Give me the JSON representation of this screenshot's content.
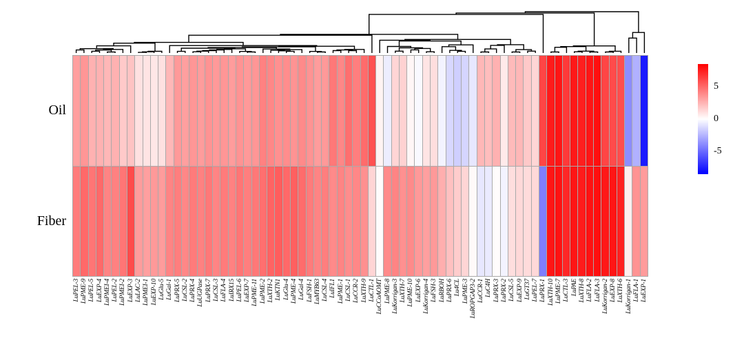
{
  "chart_data": {
    "type": "heatmap",
    "title": "",
    "rows": [
      "Oil",
      "Fiber"
    ],
    "columns": [
      "LuPEL-3",
      "LuPME-9",
      "LuPEL-5",
      "LuEXP-4",
      "LuPMEI-4",
      "LuPEL-2",
      "LuPMEI-2",
      "LuEXP-3",
      "LuLAC-2",
      "LuPMEI-1",
      "LuEXP-10",
      "LuGlu-5",
      "LuGal-1",
      "LuPRX-5",
      "LuCSL-2",
      "LuPRX-4",
      "LuUGPase",
      "LuPRX-7",
      "LuCSL-3",
      "LuFLA-4",
      "LuIRX15",
      "LuPEL-6",
      "LuEXP-7",
      "LuPME-11",
      "LuPME-2",
      "LuXTH-2",
      "LuKTN1",
      "LuGlu-4",
      "LuPME-4",
      "LuGal-4",
      "LuFSH-1",
      "LuMYB63",
      "LuCSL-4",
      "LuIFL1",
      "LuPME-1",
      "LuCSL-1",
      "LuCCR-2",
      "LuXTH-9",
      "LuCTL-1",
      "LuCCoAOMT",
      "LuPME-8",
      "LuKorrigan-3",
      "LuXTH-7",
      "LuPME-10",
      "LuEXP-6",
      "LuKorrigan-4",
      "LuFSH-3",
      "LuRBOH",
      "LuPRX-6",
      "Lu4CL",
      "LuPME-3",
      "LuROPGAP3-2",
      "LuCCR-1",
      "LuC4H",
      "LuPRX-3",
      "LuPRX-2",
      "LuCSL-5",
      "LuEXP-9",
      "LuGT37",
      "LuPEL-7",
      "LuPRX-1",
      "LuXTH-10",
      "LuPME-7",
      "LuCTL-3",
      "LuPAE",
      "LuXTH-8",
      "LuFLA-2",
      "LuFLA-3",
      "LuKorrigan-2",
      "LuEXP-8",
      "LuXTH-6",
      "LuKorrigan-1",
      "LuFLA-1",
      "LuEXP-1"
    ],
    "series": [
      {
        "name": "Oil",
        "values": [
          3.2,
          3.5,
          2.6,
          2.6,
          2.4,
          2.6,
          1.8,
          2.0,
          1.0,
          0.9,
          0.8,
          1.0,
          2.4,
          3.4,
          3.2,
          3.5,
          3.3,
          3.6,
          3.4,
          3.5,
          3.3,
          3.6,
          3.4,
          3.5,
          4.2,
          4.0,
          3.7,
          3.8,
          3.6,
          3.9,
          3.6,
          3.3,
          3.4,
          4.5,
          4.0,
          4.8,
          4.3,
          4.9,
          5.8,
          0.4,
          -0.6,
          1.4,
          1.5,
          0.3,
          -0.2,
          0.9,
          1.1,
          -0.4,
          -1.3,
          -1.6,
          -1.4,
          -0.8,
          2.4,
          2.2,
          2.6,
          0.7,
          2.3,
          2.4,
          1.8,
          1.4,
          6.2,
          7.6,
          7.8,
          6.6,
          7.7,
          7.5,
          7.8,
          8.0,
          6.2,
          6.0,
          5.9,
          -3.8,
          -2.6,
          -7.6
        ]
      },
      {
        "name": "Fiber",
        "values": [
          4.4,
          5.0,
          4.6,
          5.0,
          4.1,
          4.2,
          4.6,
          6.0,
          3.3,
          3.2,
          3.4,
          3.3,
          4.1,
          4.3,
          4.0,
          4.4,
          4.2,
          4.5,
          4.1,
          4.4,
          4.2,
          4.6,
          4.3,
          4.5,
          4.8,
          5.2,
          5.4,
          5.0,
          5.3,
          4.9,
          4.4,
          4.1,
          4.3,
          3.9,
          4.1,
          3.8,
          4.0,
          3.7,
          1.4,
          0.1,
          3.9,
          4.1,
          3.7,
          3.9,
          3.4,
          3.2,
          3.4,
          2.7,
          2.1,
          1.7,
          1.4,
          0.2,
          -0.8,
          -0.7,
          0.1,
          -0.4,
          1.1,
          1.3,
          1.2,
          1.3,
          -4.3,
          7.8,
          7.9,
          7.2,
          7.8,
          7.6,
          7.9,
          8.0,
          7.7,
          7.8,
          7.4,
          0.5,
          3.6,
          3.3
        ]
      }
    ],
    "colorbar": {
      "ticks": [
        "5",
        "0",
        "-5"
      ],
      "range_max": 8.5,
      "range_min": -8.5,
      "color_positive": "#ff0000",
      "color_zero": "#ffffff",
      "color_negative": "#0000ff"
    },
    "dendrogram": "columns",
    "layout": {
      "legend_position": "right",
      "grid_line_color": "#a9a9a9",
      "column_labels_rotated": true
    }
  }
}
